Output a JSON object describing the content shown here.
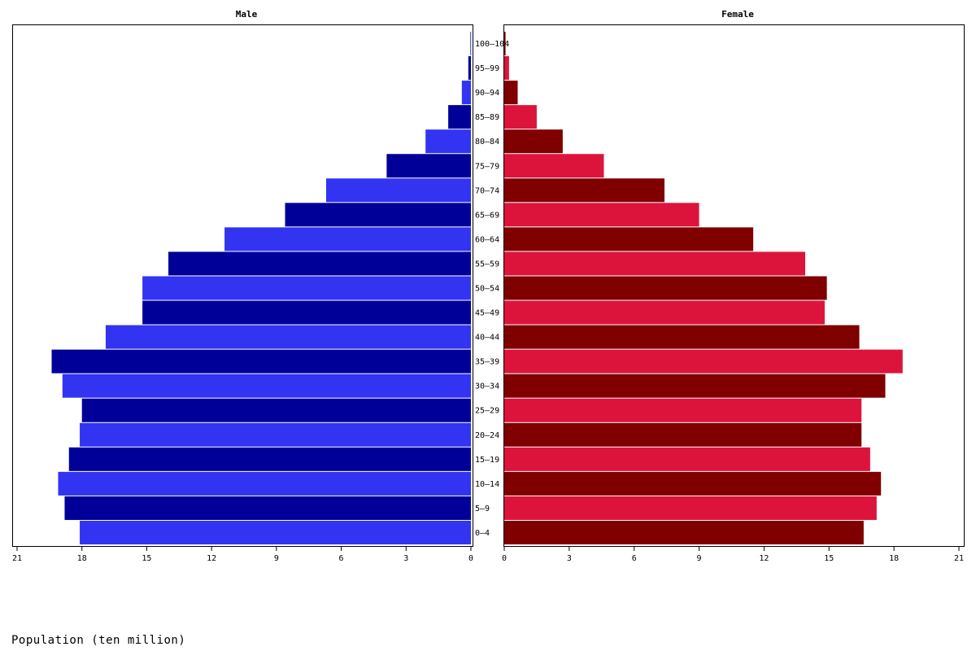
{
  "chart_data": {
    "type": "bar",
    "orientation": "horizontal",
    "xlabel": "Population (ten million)",
    "xlim": [
      0,
      21
    ],
    "x_ticks": [
      0,
      3,
      6,
      9,
      12,
      15,
      18,
      21
    ],
    "grid": false,
    "categories": [
      "0-4",
      "5-9",
      "10-14",
      "15-19",
      "20-24",
      "25-29",
      "30-34",
      "35-39",
      "40-44",
      "45-49",
      "50-54",
      "55-59",
      "60-64",
      "65-69",
      "70-74",
      "75-79",
      "80-84",
      "85-89",
      "90-94",
      "95-99",
      "100-104"
    ],
    "series": [
      {
        "name": "Male",
        "colors": [
          "#3333f2",
          "#000099"
        ],
        "values": [
          18.1,
          18.8,
          19.1,
          18.6,
          18.1,
          18.0,
          18.9,
          19.4,
          16.9,
          15.2,
          15.2,
          14.0,
          11.4,
          8.6,
          6.7,
          3.9,
          2.1,
          1.05,
          0.42,
          0.12,
          0.03
        ]
      },
      {
        "name": "Female",
        "colors": [
          "#800000",
          "#dc143c"
        ],
        "values": [
          16.6,
          17.2,
          17.4,
          16.9,
          16.5,
          16.5,
          17.6,
          18.4,
          16.4,
          14.8,
          14.9,
          13.9,
          11.5,
          9.0,
          7.4,
          4.6,
          2.7,
          1.5,
          0.62,
          0.22,
          0.06
        ]
      }
    ]
  }
}
